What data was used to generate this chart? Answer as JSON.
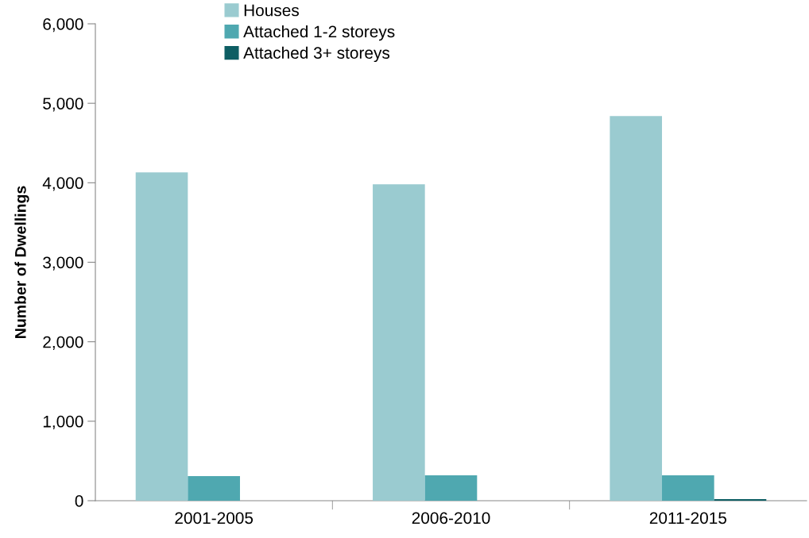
{
  "chart_data": {
    "type": "bar",
    "ylabel": "Number of Dwellings",
    "categories": [
      "2001-2005",
      "2006-2010",
      "2011-2015"
    ],
    "series": [
      {
        "name": "Houses",
        "color": "#9acbd0",
        "values": [
          4130,
          3980,
          4840
        ]
      },
      {
        "name": "Attached 1-2 storeys",
        "color": "#4fa8b0",
        "values": [
          310,
          320,
          320
        ]
      },
      {
        "name": "Attached 3+ storeys",
        "color": "#0d5e63",
        "values": [
          0,
          0,
          20
        ]
      }
    ],
    "ylim": [
      0,
      6000
    ],
    "yticks": [
      {
        "value": 0,
        "label": "0"
      },
      {
        "value": 1000,
        "label": "1,000"
      },
      {
        "value": 2000,
        "label": "2,000"
      },
      {
        "value": 3000,
        "label": "3,000"
      },
      {
        "value": 4000,
        "label": "4,000"
      },
      {
        "value": 5000,
        "label": "5,000"
      },
      {
        "value": 6000,
        "label": "6,000"
      }
    ],
    "grid": false,
    "legend": "top"
  }
}
